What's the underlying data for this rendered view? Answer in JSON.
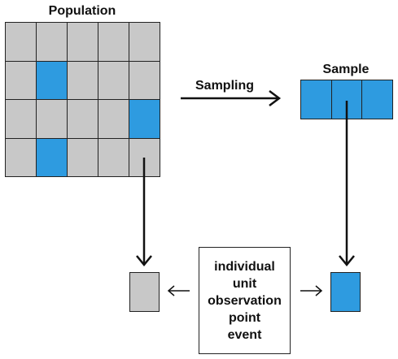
{
  "population": {
    "title": "Population",
    "rows": 4,
    "cols": 5,
    "cells": [
      "grey",
      "grey",
      "grey",
      "grey",
      "grey",
      "grey",
      "blue",
      "grey",
      "grey",
      "grey",
      "grey",
      "grey",
      "grey",
      "grey",
      "blue",
      "grey",
      "blue",
      "grey",
      "grey",
      "grey"
    ]
  },
  "sample": {
    "title": "Sample",
    "cells": [
      "blue",
      "blue",
      "blue"
    ]
  },
  "sampling_label": "Sampling",
  "unit_box": {
    "lines": [
      "individual",
      "unit",
      "observation",
      "point",
      "event"
    ]
  },
  "colors": {
    "grey": "#c8c8c8",
    "blue": "#2e9be0",
    "line": "#111111"
  }
}
